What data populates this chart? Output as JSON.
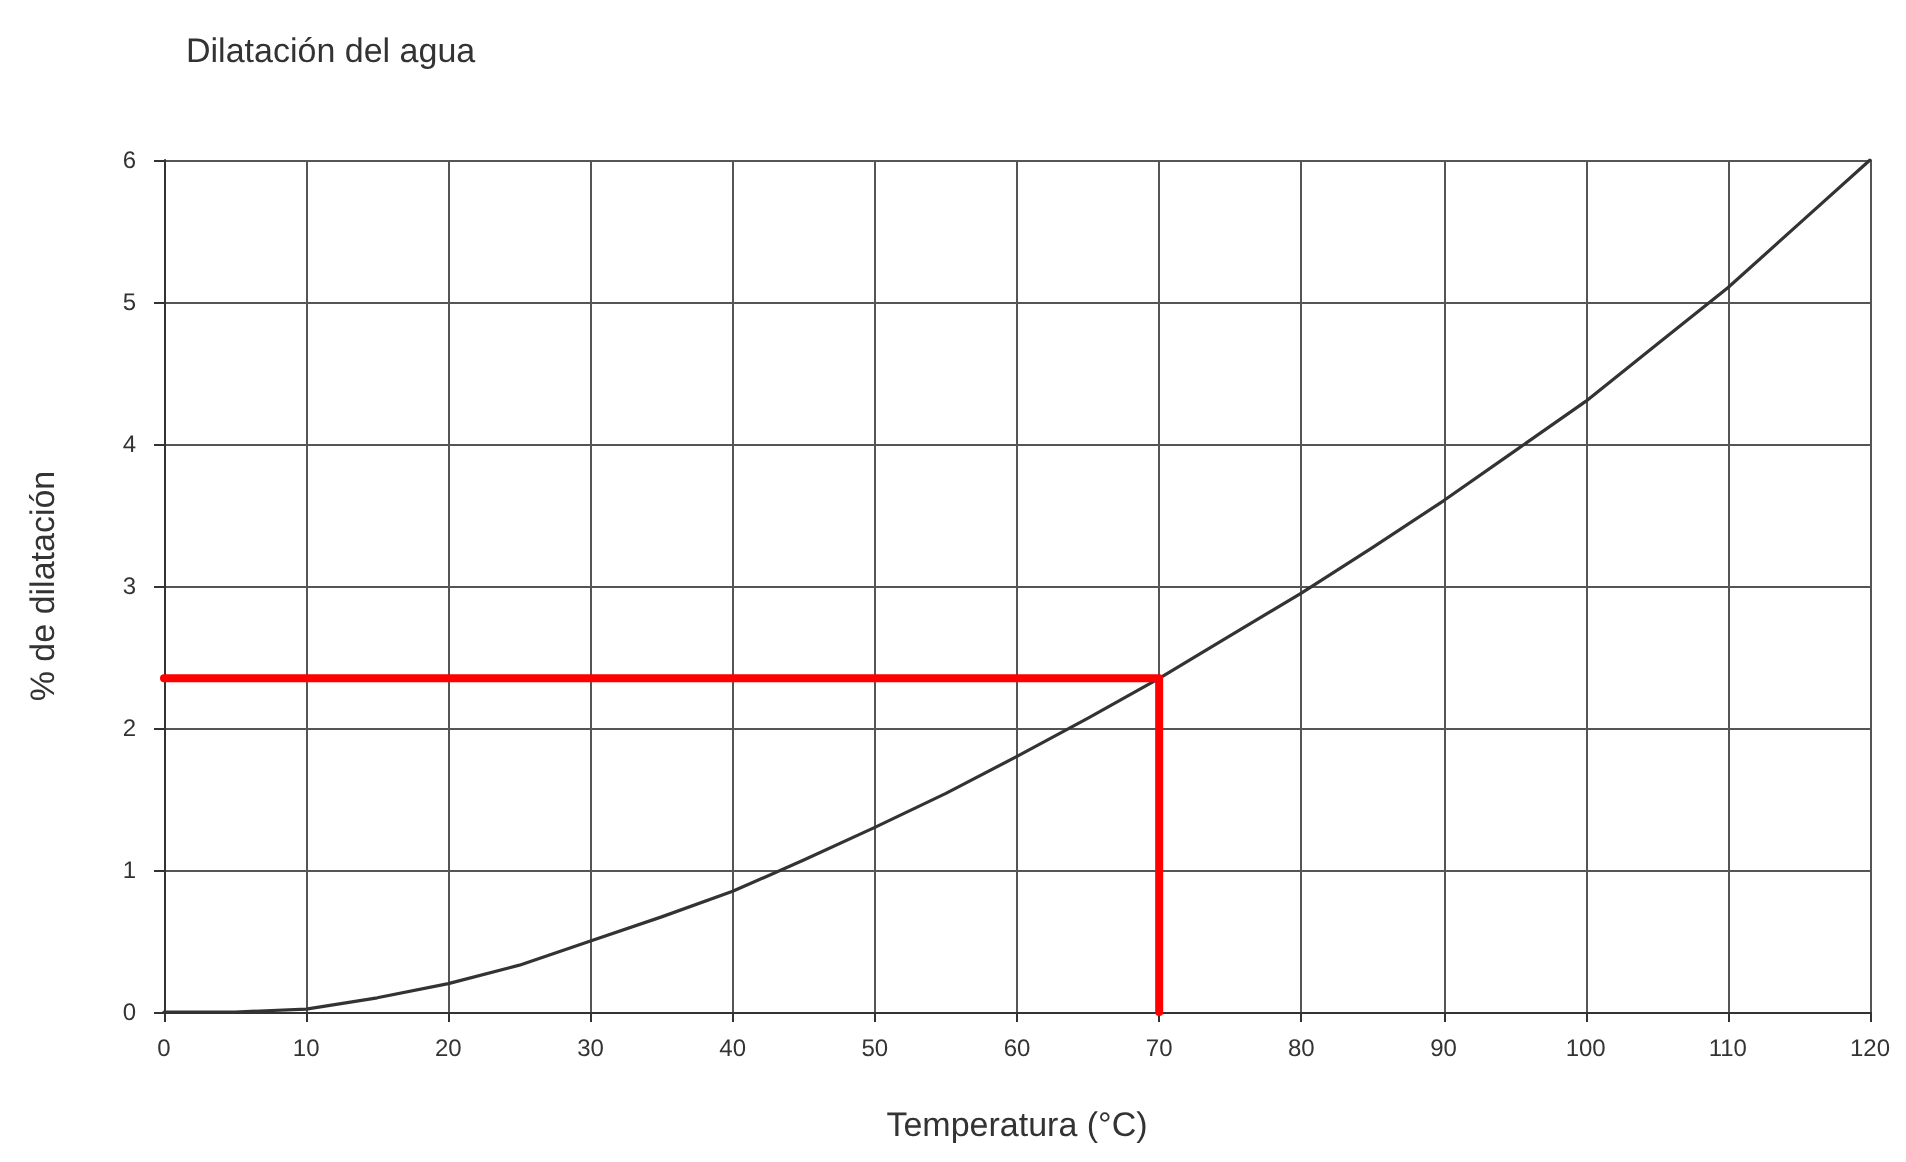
{
  "chart_data": {
    "type": "line",
    "title": "Dilatación del agua",
    "xlabel": "Temperatura (°C)",
    "ylabel": "% de dilatación",
    "xlim": [
      0,
      120
    ],
    "xticks": [
      0,
      10,
      20,
      30,
      40,
      50,
      60,
      70,
      80,
      90,
      100,
      110,
      120
    ],
    "ylim": [
      0,
      6
    ],
    "yticks": [
      0,
      1,
      2,
      3,
      4,
      5,
      6
    ],
    "grid": true,
    "marker": "none",
    "line_style": "solid",
    "series": [
      {
        "color": "#333333",
        "x": [
          0,
          5,
          10,
          15,
          20,
          25,
          30,
          35,
          40,
          45,
          50,
          55,
          60,
          65,
          70,
          75,
          80,
          85,
          90,
          95,
          100,
          105,
          110,
          115,
          120
        ],
        "values": [
          0,
          0,
          0.02,
          0.1,
          0.2,
          0.33,
          0.5,
          0.67,
          0.85,
          1.07,
          1.3,
          1.54,
          1.8,
          2.07,
          2.35,
          2.65,
          2.95,
          3.27,
          3.6,
          3.95,
          4.3,
          4.7,
          5.1,
          5.55,
          6.0
        ]
      },
      {
        "color": "#ff0000",
        "x": [
          0,
          70,
          70
        ],
        "values": [
          2.35,
          2.35,
          0
        ]
      }
    ]
  }
}
